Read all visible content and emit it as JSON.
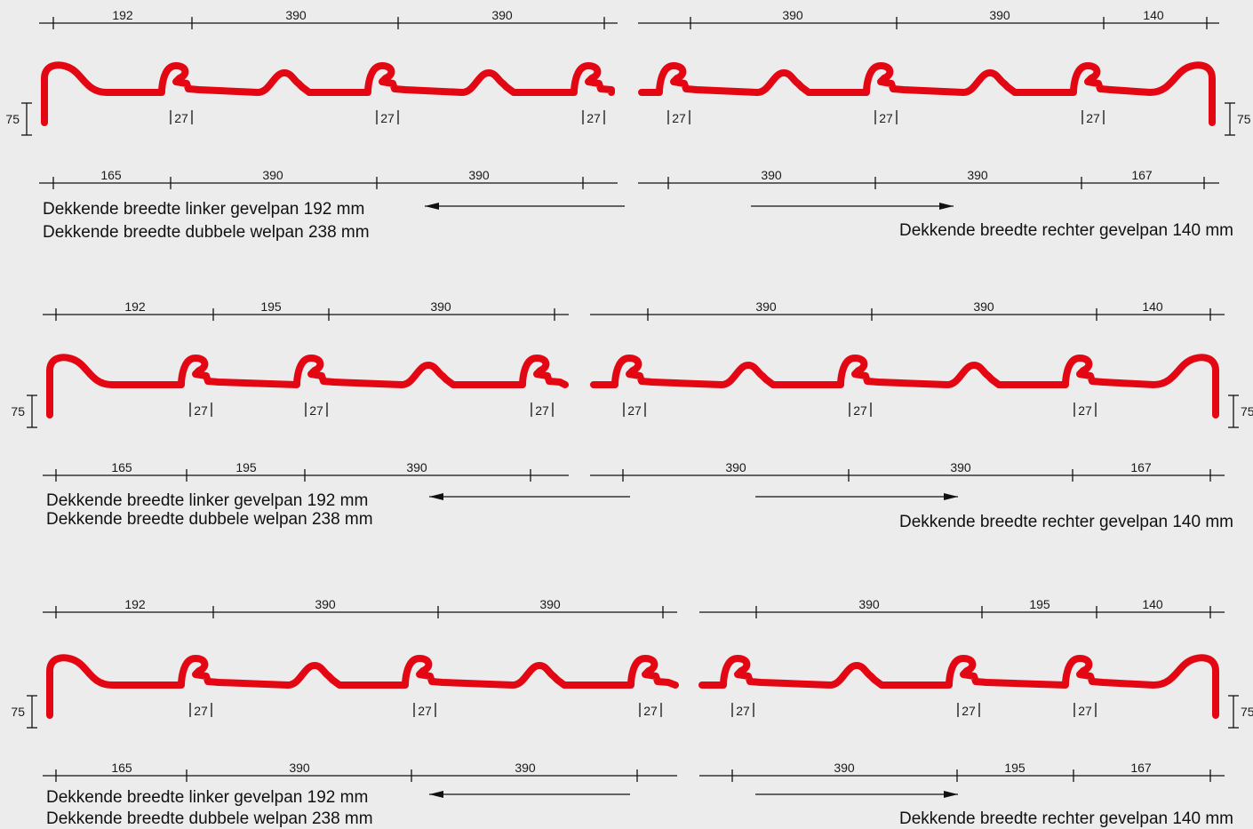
{
  "colors": {
    "tile": "#e30613",
    "line": "#111111",
    "background": "#ececec",
    "height_label_accent": "#1a3a6a"
  },
  "height_label": "75",
  "joint_label": "27",
  "rows": [
    {
      "top_left_dims": [
        "192",
        "390",
        "390"
      ],
      "top_right_dims": [
        "390",
        "390",
        "140"
      ],
      "bottom_left_dims": [
        "165",
        "390",
        "390"
      ],
      "bottom_right_dims": [
        "390",
        "390",
        "167"
      ],
      "caption_left_1": "Dekkende breedte linker gevelpan 192 mm",
      "caption_left_2": "Dekkende breedte dubbele welpan 238 mm",
      "caption_right": "Dekkende breedte rechter gevelpan 140 mm"
    },
    {
      "top_left_dims": [
        "192",
        "195",
        "390"
      ],
      "top_right_dims": [
        "390",
        "390",
        "140"
      ],
      "bottom_left_dims": [
        "165",
        "195",
        "390"
      ],
      "bottom_right_dims": [
        "390",
        "390",
        "167"
      ],
      "caption_left_1": "Dekkende breedte linker gevelpan 192 mm",
      "caption_left_2": "Dekkende breedte dubbele welpan 238 mm",
      "caption_right": "Dekkende breedte rechter gevelpan 140 mm"
    },
    {
      "top_left_dims": [
        "192",
        "390",
        "390"
      ],
      "top_right_dims": [
        "390",
        "195",
        "140"
      ],
      "bottom_left_dims": [
        "165",
        "390",
        "390"
      ],
      "bottom_right_dims": [
        "390",
        "195",
        "167"
      ],
      "caption_left_1": "Dekkende breedte linker gevelpan 192 mm",
      "caption_left_2": "Dekkende breedte dubbele welpan 238 mm",
      "caption_right": "Dekkende breedte rechter gevelpan 140 mm"
    }
  ]
}
